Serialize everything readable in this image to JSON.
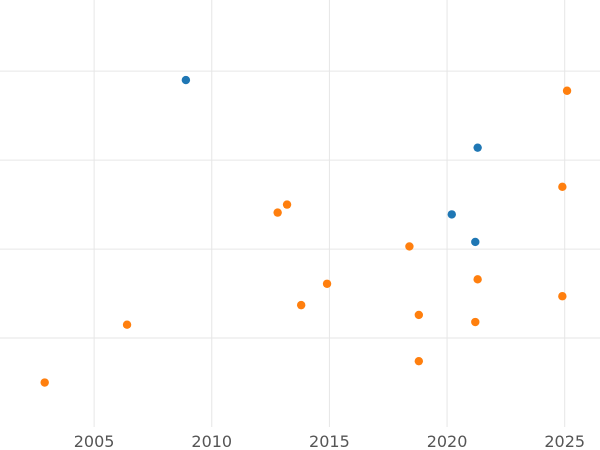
{
  "chart_data": {
    "type": "scatter",
    "title": "",
    "xlabel": "",
    "ylabel": "",
    "x_ticks": [
      2005,
      2010,
      2015,
      2020,
      2025
    ],
    "xlim": [
      2001,
      2026.5
    ],
    "ylim": [
      0,
      4.8
    ],
    "y_grid_values": [
      1,
      2,
      3,
      4
    ],
    "grid": true,
    "legend": "none",
    "series": [
      {
        "color": "#1f77b4",
        "points": [
          {
            "x": 2008.9,
            "y": 3.9
          },
          {
            "x": 2021.3,
            "y": 3.14
          },
          {
            "x": 2020.2,
            "y": 2.39
          },
          {
            "x": 2021.2,
            "y": 2.08
          }
        ]
      },
      {
        "color": "#ff7f0e",
        "points": [
          {
            "x": 2025.1,
            "y": 3.78
          },
          {
            "x": 2024.9,
            "y": 2.7
          },
          {
            "x": 2013.2,
            "y": 2.5
          },
          {
            "x": 2012.8,
            "y": 2.41
          },
          {
            "x": 2018.4,
            "y": 2.03
          },
          {
            "x": 2021.3,
            "y": 1.66
          },
          {
            "x": 2014.9,
            "y": 1.61
          },
          {
            "x": 2024.9,
            "y": 1.47
          },
          {
            "x": 2013.8,
            "y": 1.37
          },
          {
            "x": 2018.8,
            "y": 1.26
          },
          {
            "x": 2021.2,
            "y": 1.18
          },
          {
            "x": 2006.4,
            "y": 1.15
          },
          {
            "x": 2018.8,
            "y": 0.74
          },
          {
            "x": 2002.9,
            "y": 0.5
          }
        ]
      }
    ]
  }
}
